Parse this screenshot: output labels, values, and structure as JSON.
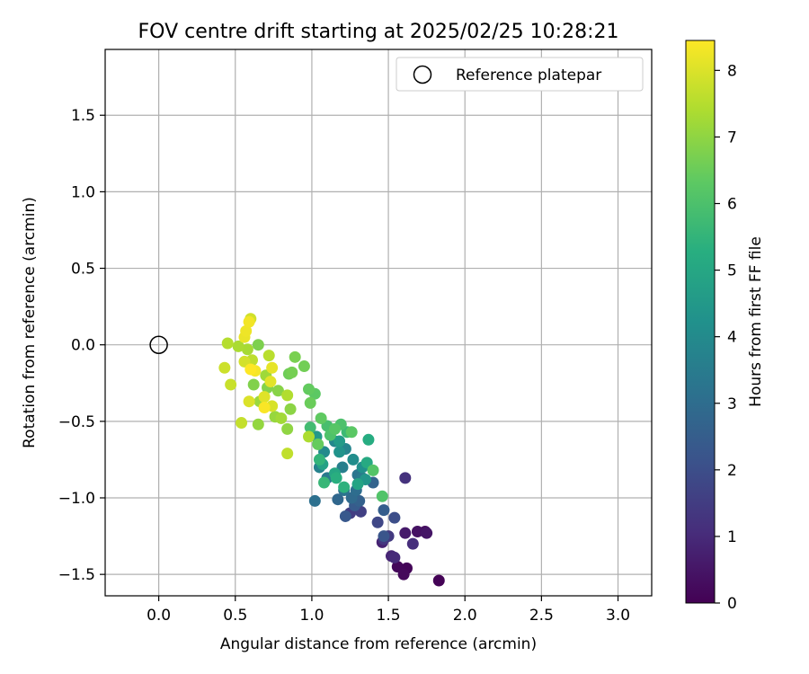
{
  "chart_data": {
    "type": "scatter",
    "title": "FOV centre drift starting at 2025/02/25 10:28:21",
    "xlabel": "Angular distance from reference (arcmin)",
    "ylabel": "Rotation from reference (arcmin)",
    "xlim": [
      -0.35,
      3.22
    ],
    "ylim": [
      -1.64,
      1.93
    ],
    "xticks": [
      "0.0",
      "0.5",
      "1.0",
      "1.5",
      "2.0",
      "2.5",
      "3.0"
    ],
    "yticks": [
      "−1.5",
      "−1.0",
      "−0.5",
      "0.0",
      "0.5",
      "1.0",
      "1.5"
    ],
    "grid": true,
    "legend": {
      "placement": "top-right",
      "entries": [
        "Reference platepar"
      ]
    },
    "reference_point": {
      "x": 0.0,
      "y": 0.0,
      "label": "Reference platepar"
    },
    "colorbar": {
      "label": "Hours from first FF file",
      "range": [
        0,
        8.45
      ],
      "ticks": [
        "0",
        "1",
        "2",
        "3",
        "4",
        "5",
        "6",
        "7",
        "8"
      ],
      "colormap": "viridis"
    },
    "series": [
      {
        "points": [
          [
            1.83,
            -1.54,
            0.05
          ],
          [
            1.62,
            -1.46,
            0.1
          ],
          [
            1.56,
            -1.45,
            0.15
          ],
          [
            1.6,
            -1.5,
            0.2
          ],
          [
            1.74,
            -1.22,
            0.3
          ],
          [
            1.69,
            -1.22,
            0.4
          ],
          [
            1.75,
            -1.23,
            0.5
          ],
          [
            1.61,
            -1.23,
            0.6
          ],
          [
            1.46,
            -1.29,
            0.8
          ],
          [
            1.52,
            -1.38,
            0.9
          ],
          [
            1.54,
            -1.39,
            1.0
          ],
          [
            1.66,
            -1.3,
            1.1
          ],
          [
            1.61,
            -0.87,
            1.2
          ],
          [
            1.47,
            -1.27,
            1.3
          ],
          [
            1.5,
            -1.25,
            1.4
          ],
          [
            1.25,
            -1.1,
            1.5
          ],
          [
            1.32,
            -1.09,
            1.6
          ],
          [
            1.43,
            -1.16,
            1.8
          ],
          [
            1.54,
            -1.13,
            2.0
          ],
          [
            1.47,
            -1.25,
            2.2
          ],
          [
            1.22,
            -1.12,
            2.3
          ],
          [
            1.28,
            -1.05,
            2.4
          ],
          [
            1.47,
            -1.08,
            2.5
          ],
          [
            1.31,
            -1.02,
            2.6
          ],
          [
            1.4,
            -0.9,
            2.7
          ],
          [
            1.17,
            -1.01,
            2.8
          ],
          [
            1.26,
            -1.0,
            2.9
          ],
          [
            1.29,
            -0.95,
            3.0
          ],
          [
            1.02,
            -1.02,
            3.1
          ],
          [
            1.21,
            -0.95,
            3.2
          ],
          [
            1.3,
            -0.85,
            3.3
          ],
          [
            1.1,
            -0.87,
            3.4
          ],
          [
            1.33,
            -0.87,
            3.5
          ],
          [
            1.2,
            -0.8,
            3.6
          ],
          [
            1.05,
            -0.8,
            3.7
          ],
          [
            1.22,
            -0.68,
            3.8
          ],
          [
            1.15,
            -0.63,
            3.9
          ],
          [
            1.08,
            -0.7,
            4.0
          ],
          [
            1.27,
            -0.75,
            4.1
          ],
          [
            1.33,
            -0.8,
            4.2
          ],
          [
            1.18,
            -0.7,
            4.3
          ],
          [
            1.35,
            -0.88,
            4.4
          ],
          [
            1.03,
            -0.6,
            4.5
          ],
          [
            1.18,
            -0.63,
            4.6
          ],
          [
            1.07,
            -0.78,
            4.8
          ],
          [
            1.3,
            -0.91,
            4.9
          ],
          [
            1.15,
            -0.84,
            5.0
          ],
          [
            1.36,
            -0.77,
            5.1
          ],
          [
            1.37,
            -0.62,
            5.2
          ],
          [
            1.16,
            -0.87,
            5.3
          ],
          [
            1.21,
            -0.93,
            5.4
          ],
          [
            1.05,
            -0.75,
            5.5
          ],
          [
            1.08,
            -0.9,
            5.6
          ],
          [
            1.23,
            -0.57,
            5.7
          ],
          [
            0.99,
            -0.54,
            5.8
          ],
          [
            1.1,
            -0.53,
            5.9
          ],
          [
            1.19,
            -0.52,
            6.0
          ],
          [
            1.12,
            -0.59,
            6.05
          ],
          [
            1.46,
            -0.99,
            6.1
          ],
          [
            1.4,
            -0.82,
            6.15
          ],
          [
            1.15,
            -0.55,
            6.2
          ],
          [
            1.26,
            -0.57,
            6.25
          ],
          [
            1.02,
            -0.32,
            6.3
          ],
          [
            1.06,
            -0.48,
            6.35
          ],
          [
            0.98,
            -0.29,
            6.4
          ],
          [
            1.04,
            -0.65,
            6.45
          ],
          [
            0.99,
            -0.38,
            6.5
          ],
          [
            0.85,
            -0.19,
            6.55
          ],
          [
            0.95,
            -0.14,
            6.6
          ],
          [
            0.87,
            -0.18,
            6.65
          ],
          [
            0.89,
            -0.08,
            6.7
          ],
          [
            0.65,
            0.0,
            6.75
          ],
          [
            0.62,
            -0.26,
            6.8
          ],
          [
            0.71,
            -0.28,
            6.85
          ],
          [
            0.78,
            -0.3,
            6.9
          ],
          [
            0.86,
            -0.42,
            6.95
          ],
          [
            0.84,
            -0.55,
            7.0
          ],
          [
            0.65,
            -0.52,
            7.05
          ],
          [
            0.76,
            -0.47,
            7.1
          ],
          [
            0.66,
            -0.37,
            7.15
          ],
          [
            0.7,
            -0.2,
            7.2
          ],
          [
            0.8,
            -0.48,
            7.25
          ],
          [
            0.58,
            -0.03,
            7.3
          ],
          [
            0.52,
            -0.01,
            7.35
          ],
          [
            0.98,
            -0.6,
            7.4
          ],
          [
            0.84,
            -0.33,
            7.45
          ],
          [
            0.45,
            0.01,
            7.5
          ],
          [
            0.72,
            -0.07,
            7.55
          ],
          [
            0.61,
            -0.1,
            7.6
          ],
          [
            0.84,
            -0.71,
            7.65
          ],
          [
            0.54,
            -0.51,
            7.7
          ],
          [
            0.47,
            -0.26,
            7.75
          ],
          [
            0.43,
            -0.15,
            7.8
          ],
          [
            0.6,
            0.17,
            7.85
          ],
          [
            0.56,
            -0.11,
            7.9
          ],
          [
            0.74,
            -0.4,
            7.95
          ],
          [
            0.59,
            -0.37,
            8.0
          ],
          [
            0.69,
            -0.34,
            8.05
          ],
          [
            0.73,
            -0.24,
            8.1
          ],
          [
            0.74,
            -0.15,
            8.15
          ],
          [
            0.56,
            0.05,
            8.2
          ],
          [
            0.57,
            0.09,
            8.25
          ],
          [
            0.59,
            0.15,
            8.3
          ],
          [
            0.63,
            -0.17,
            8.35
          ],
          [
            0.69,
            -0.41,
            8.4
          ],
          [
            0.6,
            -0.16,
            8.45
          ]
        ]
      }
    ]
  }
}
